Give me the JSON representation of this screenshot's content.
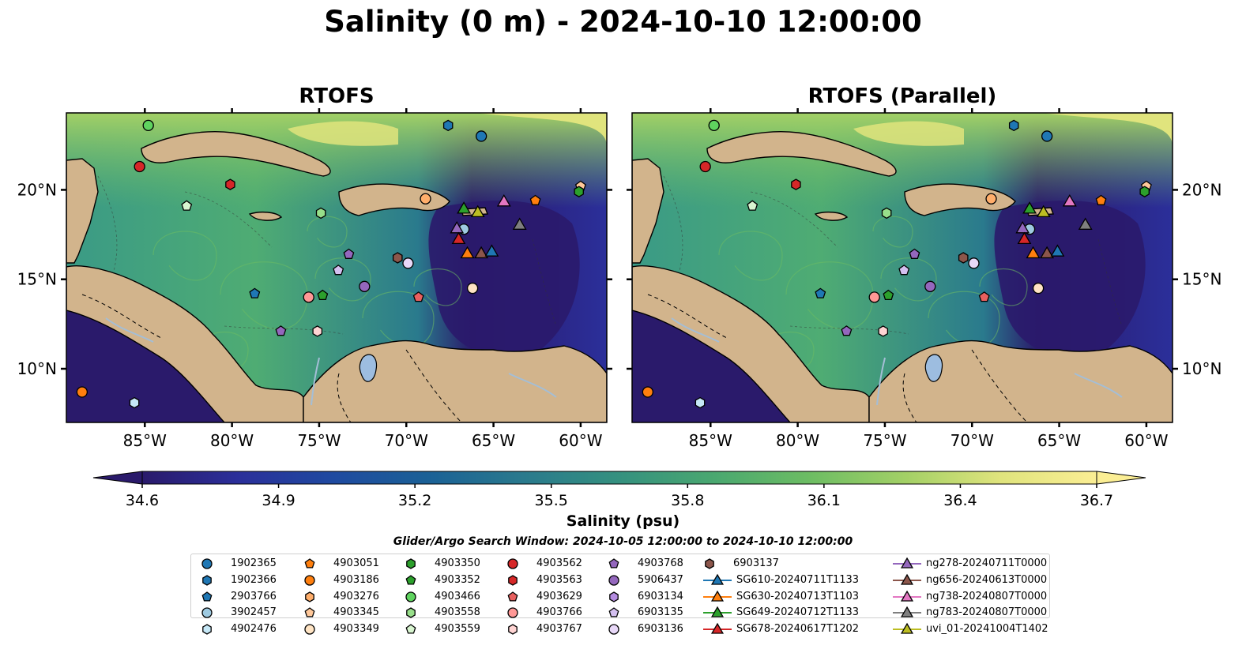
{
  "title": "Salinity (0 m) - 2024-10-10 12:00:00",
  "panels": [
    {
      "title": "RTOFS"
    },
    {
      "title": "RTOFS (Parallel)"
    }
  ],
  "axes": {
    "lon_ticks": [
      "85°W",
      "80°W",
      "75°W",
      "70°W",
      "65°W",
      "60°W"
    ],
    "lat_ticks": [
      "20°N",
      "15°N",
      "10°N"
    ]
  },
  "colorbar": {
    "label": "Salinity (psu)",
    "ticks": [
      "34.6",
      "34.9",
      "35.2",
      "35.5",
      "35.8",
      "36.1",
      "36.4",
      "36.7"
    ],
    "min": 34.6,
    "max": 36.7,
    "colors": [
      "#2a1a6b",
      "#2b2f9a",
      "#1f4aa0",
      "#1b6196",
      "#2a7a8d",
      "#35917f",
      "#4aa870",
      "#6dbd63",
      "#a3d066",
      "#e0e47d",
      "#fbee94"
    ]
  },
  "search_window": "Glider/Argo Search Window: 2024-10-05 12:00:00 to 2024-10-10 12:00:00",
  "legend": [
    {
      "label": "1902365",
      "marker": "circle",
      "color": "#1f77b4"
    },
    {
      "label": "1902366",
      "marker": "hexagon",
      "color": "#1f77b4"
    },
    {
      "label": "2903766",
      "marker": "pentagon",
      "color": "#1f77b4"
    },
    {
      "label": "3902457",
      "marker": "circle",
      "color": "#9ecae1"
    },
    {
      "label": "4902476",
      "marker": "hexagon",
      "color": "#c6e8f7"
    },
    {
      "label": "4903051",
      "marker": "pentagon",
      "color": "#ff7f0e"
    },
    {
      "label": "4903186",
      "marker": "circle",
      "color": "#ff7f0e"
    },
    {
      "label": "4903276",
      "marker": "hexagon",
      "color": "#ffae6b"
    },
    {
      "label": "4903345",
      "marker": "pentagon",
      "color": "#ffc89a"
    },
    {
      "label": "4903349",
      "marker": "circle",
      "color": "#ffe4c4"
    },
    {
      "label": "4903350",
      "marker": "hexagon",
      "color": "#2ca02c"
    },
    {
      "label": "4903352",
      "marker": "pentagon",
      "color": "#2ca02c"
    },
    {
      "label": "4903466",
      "marker": "circle",
      "color": "#5fd35f"
    },
    {
      "label": "4903558",
      "marker": "hexagon",
      "color": "#98df8a"
    },
    {
      "label": "4903559",
      "marker": "pentagon",
      "color": "#d8f5d0"
    },
    {
      "label": "4903562",
      "marker": "circle",
      "color": "#d62728"
    },
    {
      "label": "4903563",
      "marker": "hexagon",
      "color": "#d62728"
    },
    {
      "label": "4903629",
      "marker": "pentagon",
      "color": "#e8605f"
    },
    {
      "label": "4903766",
      "marker": "circle",
      "color": "#ff9896"
    },
    {
      "label": "4903767",
      "marker": "hexagon",
      "color": "#ffd4d3"
    },
    {
      "label": "4903768",
      "marker": "pentagon",
      "color": "#9467bd"
    },
    {
      "label": "5906437",
      "marker": "circle",
      "color": "#9467bd"
    },
    {
      "label": "6903134",
      "marker": "hexagon",
      "color": "#b48ce0"
    },
    {
      "label": "6903135",
      "marker": "pentagon",
      "color": "#d4c0f0"
    },
    {
      "label": "6903136",
      "marker": "circle",
      "color": "#e8d8f8"
    },
    {
      "label": "6903137",
      "marker": "hexagon",
      "color": "#8c564b"
    },
    {
      "label": "SG610-20240711T1133",
      "marker": "triangle-line",
      "color": "#1f77b4"
    },
    {
      "label": "SG630-20240713T1103",
      "marker": "triangle-line",
      "color": "#ff7f0e"
    },
    {
      "label": "SG649-20240712T1133",
      "marker": "triangle-line",
      "color": "#2ca02c"
    },
    {
      "label": "SG678-20240617T1202",
      "marker": "triangle-line",
      "color": "#d62728"
    },
    {
      "label": "ng278-20240711T0000",
      "marker": "triangle-line",
      "color": "#9467bd"
    },
    {
      "label": "ng656-20240613T0000",
      "marker": "triangle-line",
      "color": "#8c564b"
    },
    {
      "label": "ng738-20240807T0000",
      "marker": "triangle-line",
      "color": "#e377c2"
    },
    {
      "label": "ng783-20240807T0000",
      "marker": "triangle-line",
      "color": "#7f7f7f"
    },
    {
      "label": "uvi_01-20241004T1402",
      "marker": "triangle-line",
      "color": "#bcbd22"
    }
  ],
  "map_colors": {
    "land": "#d2b48c",
    "rivers": "#a4bed6",
    "lakes": "#9dbde0"
  }
}
